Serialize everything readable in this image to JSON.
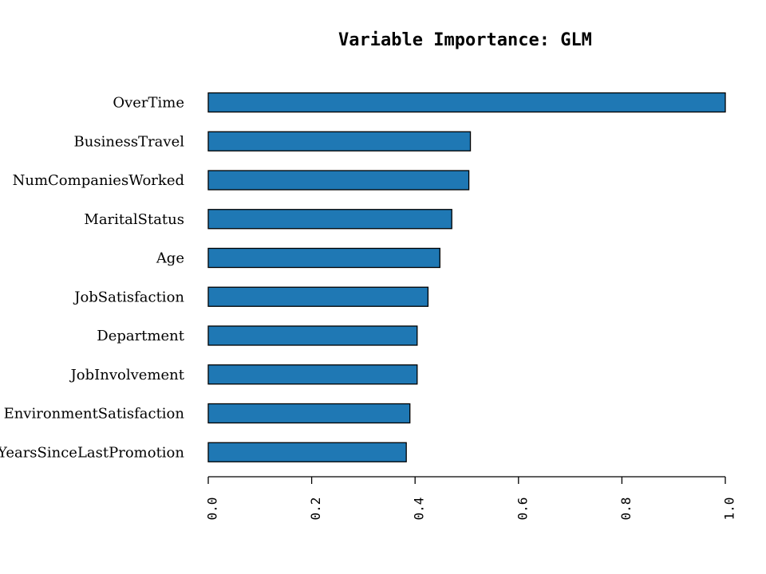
{
  "chart_data": {
    "type": "bar",
    "orientation": "horizontal",
    "title": "Variable Importance: GLM",
    "xlabel": "",
    "ylabel": "",
    "categories": [
      "OverTime",
      "BusinessTravel",
      "NumCompaniesWorked",
      "MaritalStatus",
      "Age",
      "JobSatisfaction",
      "Department",
      "JobInvolvement",
      "EnvironmentSatisfaction",
      "YearsSinceLastPromotion"
    ],
    "values": [
      1.0,
      0.507,
      0.504,
      0.471,
      0.448,
      0.425,
      0.404,
      0.404,
      0.39,
      0.383
    ],
    "xlim": [
      0,
      1
    ],
    "xticks": [
      "0.0",
      "0.2",
      "0.4",
      "0.6",
      "0.8",
      "1.0"
    ],
    "bar_color": "#1f78b4",
    "grid": false,
    "legend": "none"
  }
}
